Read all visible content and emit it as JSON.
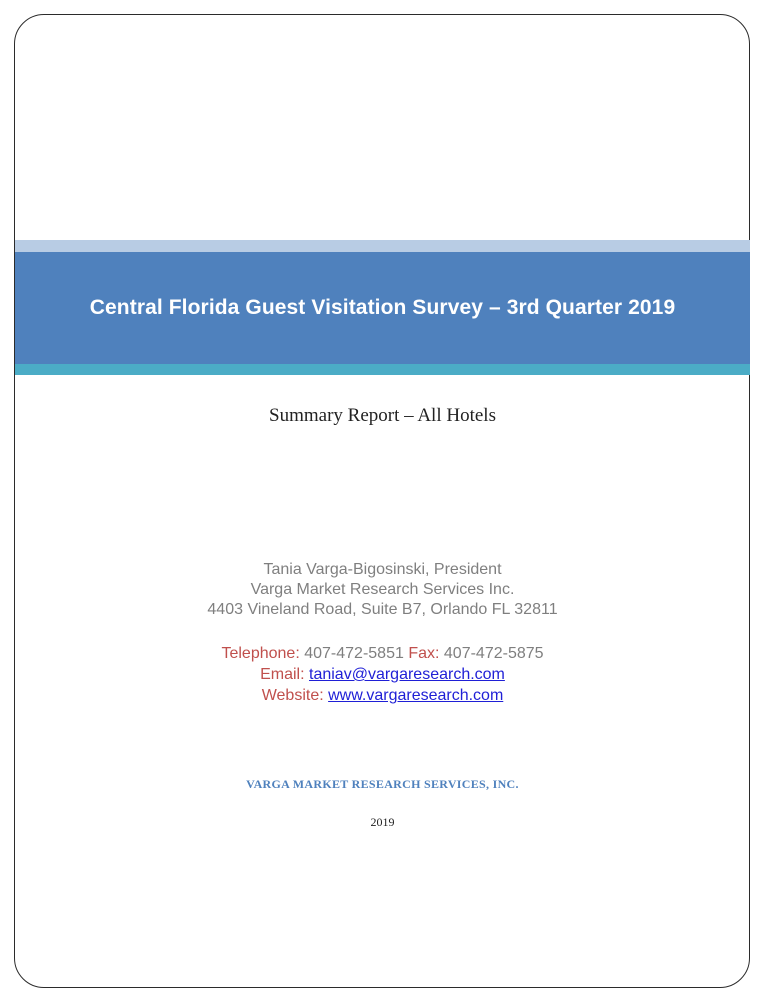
{
  "title": "Central Florida Guest Visitation Survey – 3rd Quarter 2019",
  "subtitle": "Summary Report – All Hotels",
  "contact": {
    "name": "Tania Varga-Bigosinski, President",
    "company": "Varga Market Research Services Inc.",
    "address": "4403 Vineland Road, Suite B7, Orlando FL 32811"
  },
  "phones": {
    "telephone_label": "Telephone:",
    "telephone": "407-472-5851",
    "fax_label": "Fax:",
    "fax": "407-472-5875",
    "email_label": "Email:",
    "email": "taniav@vargaresearch.com",
    "website_label": "Website:",
    "website": "www.vargaresearch.com"
  },
  "footer": {
    "company": "VARGA MARKET RESEARCH SERVICES, INC.",
    "year": "2019"
  },
  "colors": {
    "band_light": "#b8cce4",
    "band_main": "#4f81bd",
    "band_accent": "#4bacc6",
    "label_red": "#c0504d",
    "link_blue": "#1f1fd6"
  }
}
